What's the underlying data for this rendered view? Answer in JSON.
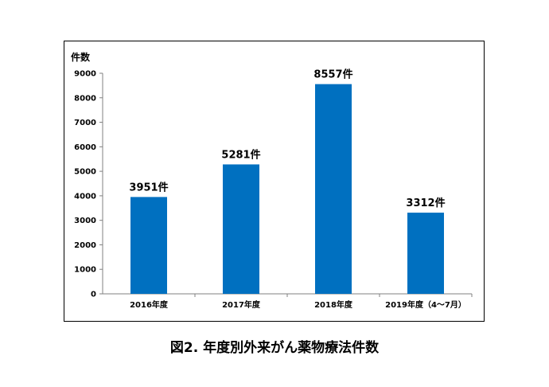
{
  "caption": "図2. 年度別外来がん薬物療法件数",
  "chart_data": {
    "type": "bar",
    "title": "",
    "ylabel": "件数",
    "xlabel": "",
    "categories": [
      "2016年度",
      "2017年度",
      "2018年度",
      "2019年度（4～7月）"
    ],
    "values": [
      3951,
      5281,
      8557,
      3312
    ],
    "data_labels": [
      "3951件",
      "5281件",
      "8557件",
      "3312件"
    ],
    "ylim": [
      0,
      9000
    ],
    "yticks": [
      0,
      1000,
      2000,
      3000,
      4000,
      5000,
      6000,
      7000,
      8000,
      9000
    ],
    "grid": false,
    "legend": "none",
    "bar_color": "#0070C0"
  }
}
